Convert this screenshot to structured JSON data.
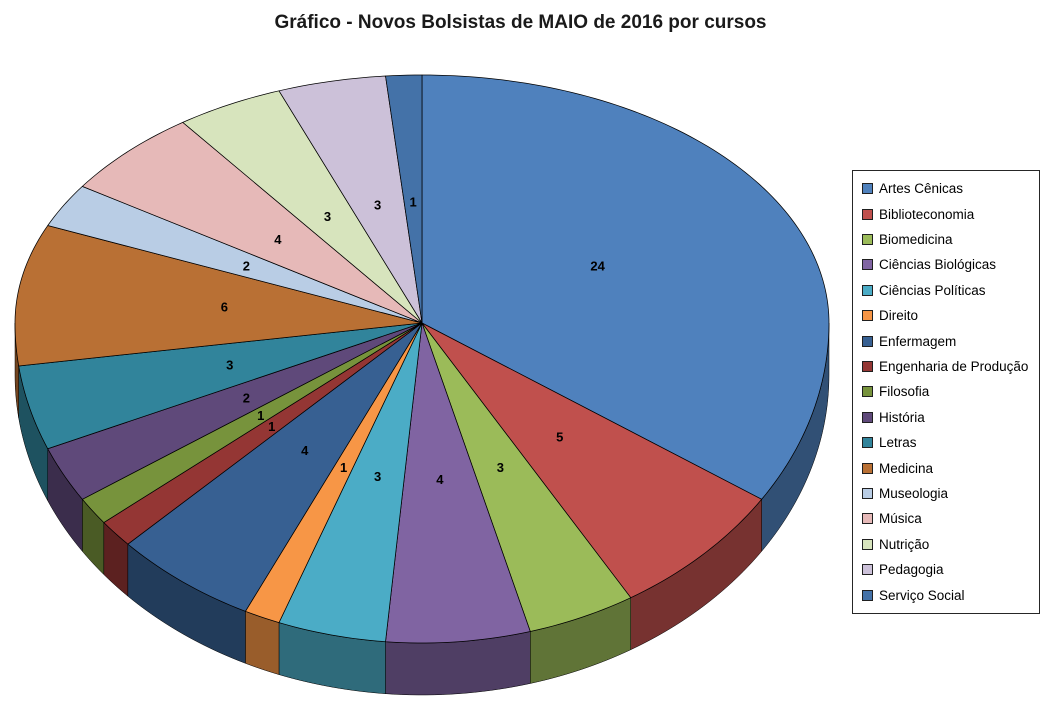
{
  "chart_data": {
    "type": "pie",
    "title": "Gráfico - Novos Bolsistas de MAIO de 2016 por cursos",
    "effect": "3d",
    "start_angle": "top",
    "direction": "clockwise",
    "legend_position": "right",
    "labels_shown": "values",
    "categories": [
      "Artes Cênicas",
      "Biblioteconomia",
      "Biomedicina",
      "Ciências Biológicas",
      "Ciências Políticas",
      "Direito",
      "Enfermagem",
      "Engenharia de Produção",
      "Filosofia",
      "História",
      "Letras",
      "Medicina",
      "Museologia",
      "Música",
      "Nutrição",
      "Pedagogia",
      "Serviço Social"
    ],
    "values": [
      24,
      5,
      3,
      4,
      3,
      1,
      4,
      1,
      1,
      2,
      3,
      6,
      2,
      4,
      3,
      3,
      1
    ],
    "colors": [
      "#4F81BD",
      "#C0504D",
      "#9BBB59",
      "#8064A2",
      "#4BACC6",
      "#F79646",
      "#376092",
      "#943634",
      "#77933C",
      "#5F497A",
      "#31849B",
      "#B97034",
      "#B9CDE5",
      "#E6B9B8",
      "#D7E4BD",
      "#CCC1D9",
      "#4472A8"
    ]
  }
}
